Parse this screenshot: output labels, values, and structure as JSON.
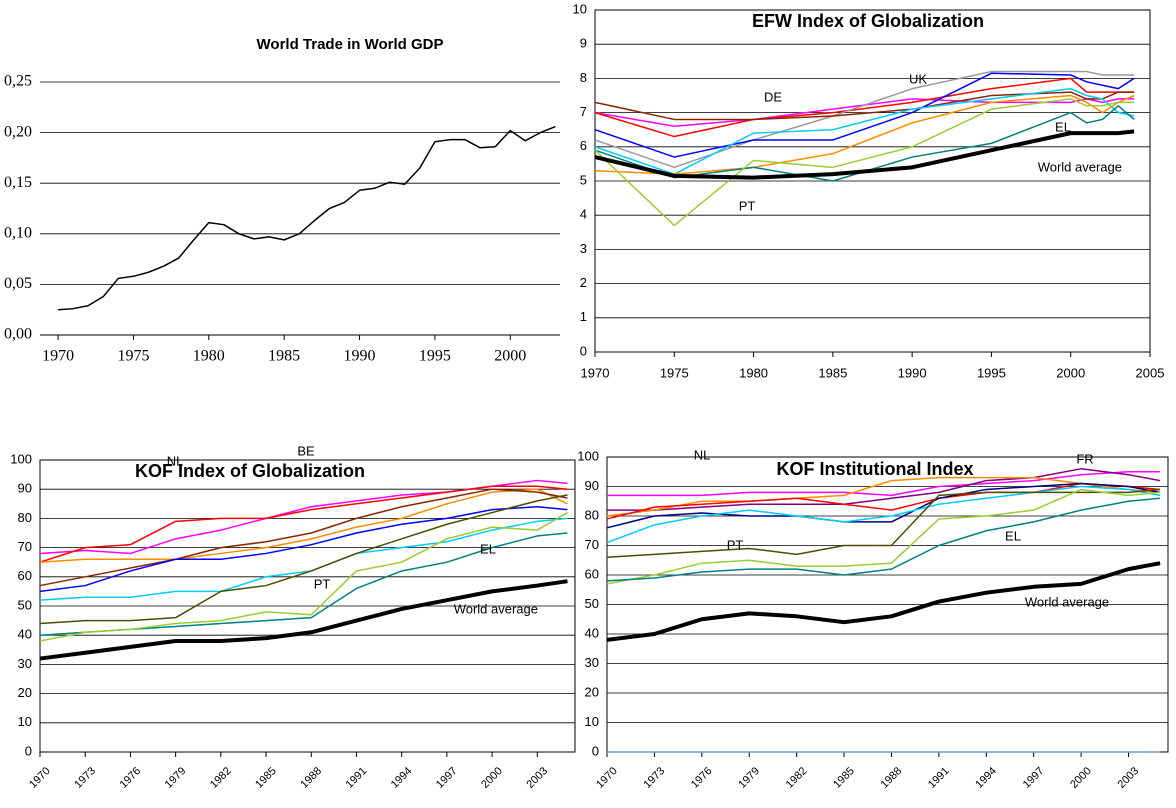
{
  "chart_data": [
    {
      "type": "line",
      "title": "World Trade in World GDP",
      "x": [
        1970,
        1971,
        1972,
        1973,
        1974,
        1975,
        1976,
        1977,
        1978,
        1979,
        1980,
        1981,
        1982,
        1983,
        1984,
        1985,
        1986,
        1987,
        1988,
        1989,
        1990,
        1991,
        1992,
        1993,
        1994,
        1995,
        1996,
        1997,
        1998,
        1999,
        2000,
        2001,
        2002,
        2003
      ],
      "values": [
        0.025,
        0.026,
        0.029,
        0.038,
        0.056,
        0.058,
        0.062,
        0.068,
        0.076,
        0.094,
        0.111,
        0.109,
        0.1,
        0.095,
        0.097,
        0.094,
        0.1,
        0.113,
        0.125,
        0.131,
        0.143,
        0.145,
        0.151,
        0.149,
        0.165,
        0.191,
        0.193,
        0.193,
        0.185,
        0.186,
        0.202,
        0.192,
        0.2,
        0.206
      ],
      "color": "#000000",
      "xlim": [
        1968.8,
        2003.3
      ],
      "xticks": [
        1970,
        1975,
        1980,
        1985,
        1990,
        1995,
        2000
      ],
      "ylim": [
        0,
        0.25
      ],
      "yticks": [
        {
          "value": 0,
          "label": "0,00"
        },
        {
          "value": 0.05,
          "label": "0,05"
        },
        {
          "value": 0.1,
          "label": "0,10"
        },
        {
          "value": 0.15,
          "label": "0,15"
        },
        {
          "value": 0.2,
          "label": "0,20"
        },
        {
          "value": 0.25,
          "label": "0,25"
        }
      ],
      "grid": true
    },
    {
      "type": "line",
      "title": "EFW Index of Globalization",
      "x": [
        1970,
        1975,
        1980,
        1985,
        1990,
        1995,
        2000,
        2001,
        2002,
        2003,
        2004
      ],
      "series": [
        {
          "color": "#ff00ff",
          "values": [
            7.0,
            6.6,
            6.8,
            7.1,
            7.4,
            7.3,
            7.3,
            7.4,
            7.3,
            7.4,
            7.4
          ]
        },
        {
          "color": "#ff0000",
          "values": [
            7.0,
            6.3,
            6.8,
            7.0,
            7.3,
            7.7,
            8.0,
            7.6,
            7.6,
            7.6,
            7.6
          ]
        },
        {
          "color": "#999999",
          "values": [
            6.2,
            5.4,
            6.2,
            6.9,
            7.7,
            8.2,
            8.2,
            8.2,
            8.1,
            8.1,
            8.1
          ]
        },
        {
          "color": "#8b2500",
          "values": [
            7.3,
            6.8,
            6.8,
            6.9,
            7.1,
            7.5,
            7.6,
            7.4,
            7.4,
            7.6,
            7.6
          ]
        },
        {
          "color": "#0000ff",
          "values": [
            6.5,
            5.7,
            6.2,
            6.2,
            7.0,
            8.15,
            8.1,
            7.9,
            7.8,
            7.7,
            8.0
          ]
        },
        {
          "color": "#00ccff",
          "values": [
            6.0,
            5.2,
            6.4,
            6.5,
            7.1,
            7.4,
            7.7,
            7.5,
            7.4,
            7.0,
            6.9
          ]
        },
        {
          "color": "#ff8c00",
          "values": [
            5.3,
            5.2,
            5.4,
            5.8,
            6.7,
            7.3,
            7.5,
            7.3,
            7.0,
            7.3,
            7.5
          ]
        },
        {
          "color": "#008080",
          "values": [
            5.9,
            5.1,
            5.4,
            5.0,
            5.7,
            6.1,
            7.0,
            6.7,
            6.8,
            7.2,
            6.8
          ]
        },
        {
          "color": "#9acd32",
          "values": [
            5.9,
            3.7,
            5.6,
            5.4,
            6.0,
            7.1,
            7.4,
            7.2,
            7.2,
            7.3,
            7.3
          ]
        },
        {
          "color": "#000000",
          "width": 4,
          "values": [
            5.7,
            5.15,
            5.1,
            5.2,
            5.4,
            5.9,
            6.4,
            6.4,
            6.4,
            6.4,
            6.45
          ]
        }
      ],
      "annotations": [
        "DE",
        "UK",
        "EL",
        "World average",
        "PT"
      ],
      "xlim": [
        1970,
        2005
      ],
      "xticks": [
        1970,
        1975,
        1980,
        1985,
        1990,
        1995,
        2000,
        2005
      ],
      "ylim": [
        0,
        10
      ],
      "yticks": [
        0,
        1,
        2,
        3,
        4,
        5,
        6,
        7,
        8,
        9,
        10
      ],
      "grid": true
    },
    {
      "type": "line",
      "title": "KOF Index of Globalization",
      "x": [
        1970,
        1973,
        1976,
        1979,
        1982,
        1985,
        1988,
        1991,
        1994,
        1997,
        2000,
        2003,
        2005
      ],
      "series": [
        {
          "color": "#ff00ff",
          "values": [
            68,
            69,
            68,
            73,
            76,
            80,
            84,
            86,
            88,
            89,
            91,
            93,
            92
          ]
        },
        {
          "color": "#ff0000",
          "values": [
            65,
            70,
            71,
            79,
            80,
            80,
            83,
            85,
            87,
            89,
            91,
            91,
            90
          ]
        },
        {
          "color": "#ff8c00",
          "values": [
            65,
            66,
            66,
            66,
            68,
            70,
            73,
            77,
            80,
            85,
            89,
            90,
            85
          ]
        },
        {
          "color": "#8b2500",
          "values": [
            57,
            60,
            63,
            66,
            70,
            72,
            75,
            80,
            84,
            87,
            90,
            89,
            87
          ]
        },
        {
          "color": "#0000ff",
          "values": [
            55,
            57,
            62,
            66,
            66,
            68,
            71,
            75,
            78,
            80,
            83,
            84,
            83
          ]
        },
        {
          "color": "#00ccff",
          "values": [
            52,
            53,
            53,
            55,
            55,
            60,
            62,
            68,
            70,
            72,
            76,
            79,
            80
          ]
        },
        {
          "color": "#4d4d00",
          "values": [
            44,
            45,
            45,
            46,
            55,
            57,
            62,
            68,
            73,
            78,
            82,
            86,
            88
          ]
        },
        {
          "color": "#008080",
          "values": [
            40,
            41,
            42,
            43,
            44,
            45,
            46,
            56,
            62,
            65,
            70,
            74,
            75
          ]
        },
        {
          "color": "#9acd32",
          "values": [
            38,
            41,
            42,
            44,
            45,
            48,
            47,
            62,
            65,
            73,
            77,
            76,
            82
          ]
        },
        {
          "color": "#000000",
          "width": 4,
          "values": [
            32,
            34,
            36,
            38,
            38,
            39,
            41,
            45,
            49,
            52,
            55,
            57,
            58.5
          ]
        }
      ],
      "annotations": [
        "NL",
        "BE",
        "EL",
        "PT",
        "World average"
      ],
      "xlim": [
        1970,
        2005.5
      ],
      "xticks": [
        1970,
        1973,
        1976,
        1979,
        1982,
        1985,
        1988,
        1991,
        1994,
        1997,
        2000,
        2003
      ],
      "ylim": [
        0,
        100
      ],
      "yticks": [
        0,
        10,
        20,
        30,
        40,
        50,
        60,
        70,
        80,
        90,
        100
      ],
      "grid": true
    },
    {
      "type": "line",
      "title": "KOF Institutional Index",
      "x": [
        1970,
        1973,
        1976,
        1979,
        1982,
        1985,
        1988,
        1991,
        1994,
        1997,
        2000,
        2003,
        2005
      ],
      "series": [
        {
          "color": "#ff00ff",
          "values": [
            87,
            87,
            87,
            88,
            88,
            88,
            87,
            90,
            91,
            92,
            94,
            95,
            95
          ]
        },
        {
          "color": "#800080",
          "values": [
            82,
            82,
            83,
            84,
            84,
            84,
            86,
            88,
            92,
            93,
            96,
            94,
            92
          ]
        },
        {
          "color": "#ff8c00",
          "values": [
            80,
            82,
            85,
            85,
            86,
            87,
            92,
            93,
            93,
            93,
            91,
            89,
            88
          ]
        },
        {
          "color": "#ff0000",
          "values": [
            79,
            83,
            84,
            85,
            86,
            84,
            82,
            86,
            88,
            88,
            91,
            90,
            89
          ]
        },
        {
          "color": "#000080",
          "values": [
            76,
            80,
            81,
            80,
            80,
            78,
            78,
            86,
            89,
            90,
            91,
            90,
            88
          ]
        },
        {
          "color": "#00ccff",
          "values": [
            71,
            77,
            80,
            82,
            80,
            78,
            80,
            84,
            86,
            88,
            90,
            89,
            87
          ]
        },
        {
          "color": "#4d4d00",
          "values": [
            66,
            67,
            68,
            69,
            67,
            70,
            70,
            87,
            88,
            88,
            88,
            88,
            89
          ]
        },
        {
          "color": "#9acd32",
          "values": [
            57,
            60,
            64,
            65,
            63,
            63,
            64,
            79,
            80,
            82,
            89,
            87,
            88
          ]
        },
        {
          "color": "#008080",
          "values": [
            58,
            59,
            61,
            62,
            62,
            60,
            62,
            70,
            75,
            78,
            82,
            85,
            86
          ]
        },
        {
          "color": "#6699cc",
          "values": [
            0,
            0,
            0,
            0,
            0,
            0,
            0,
            0,
            0,
            0,
            0,
            0,
            0
          ]
        },
        {
          "color": "#000000",
          "width": 4,
          "values": [
            38,
            40,
            45,
            47,
            46,
            44,
            46,
            51,
            54,
            56,
            57,
            62,
            64
          ]
        }
      ],
      "annotations": [
        "NL",
        "FR",
        "PT",
        "EL",
        "World average"
      ],
      "xlim": [
        1970,
        2005.5
      ],
      "xticks": [
        1970,
        1973,
        1976,
        1979,
        1982,
        1985,
        1988,
        1991,
        1994,
        1997,
        2000,
        2003
      ],
      "ylim": [
        0,
        100
      ],
      "yticks": [
        0,
        10,
        20,
        30,
        40,
        50,
        60,
        70,
        80,
        90,
        100
      ],
      "grid": true
    }
  ]
}
